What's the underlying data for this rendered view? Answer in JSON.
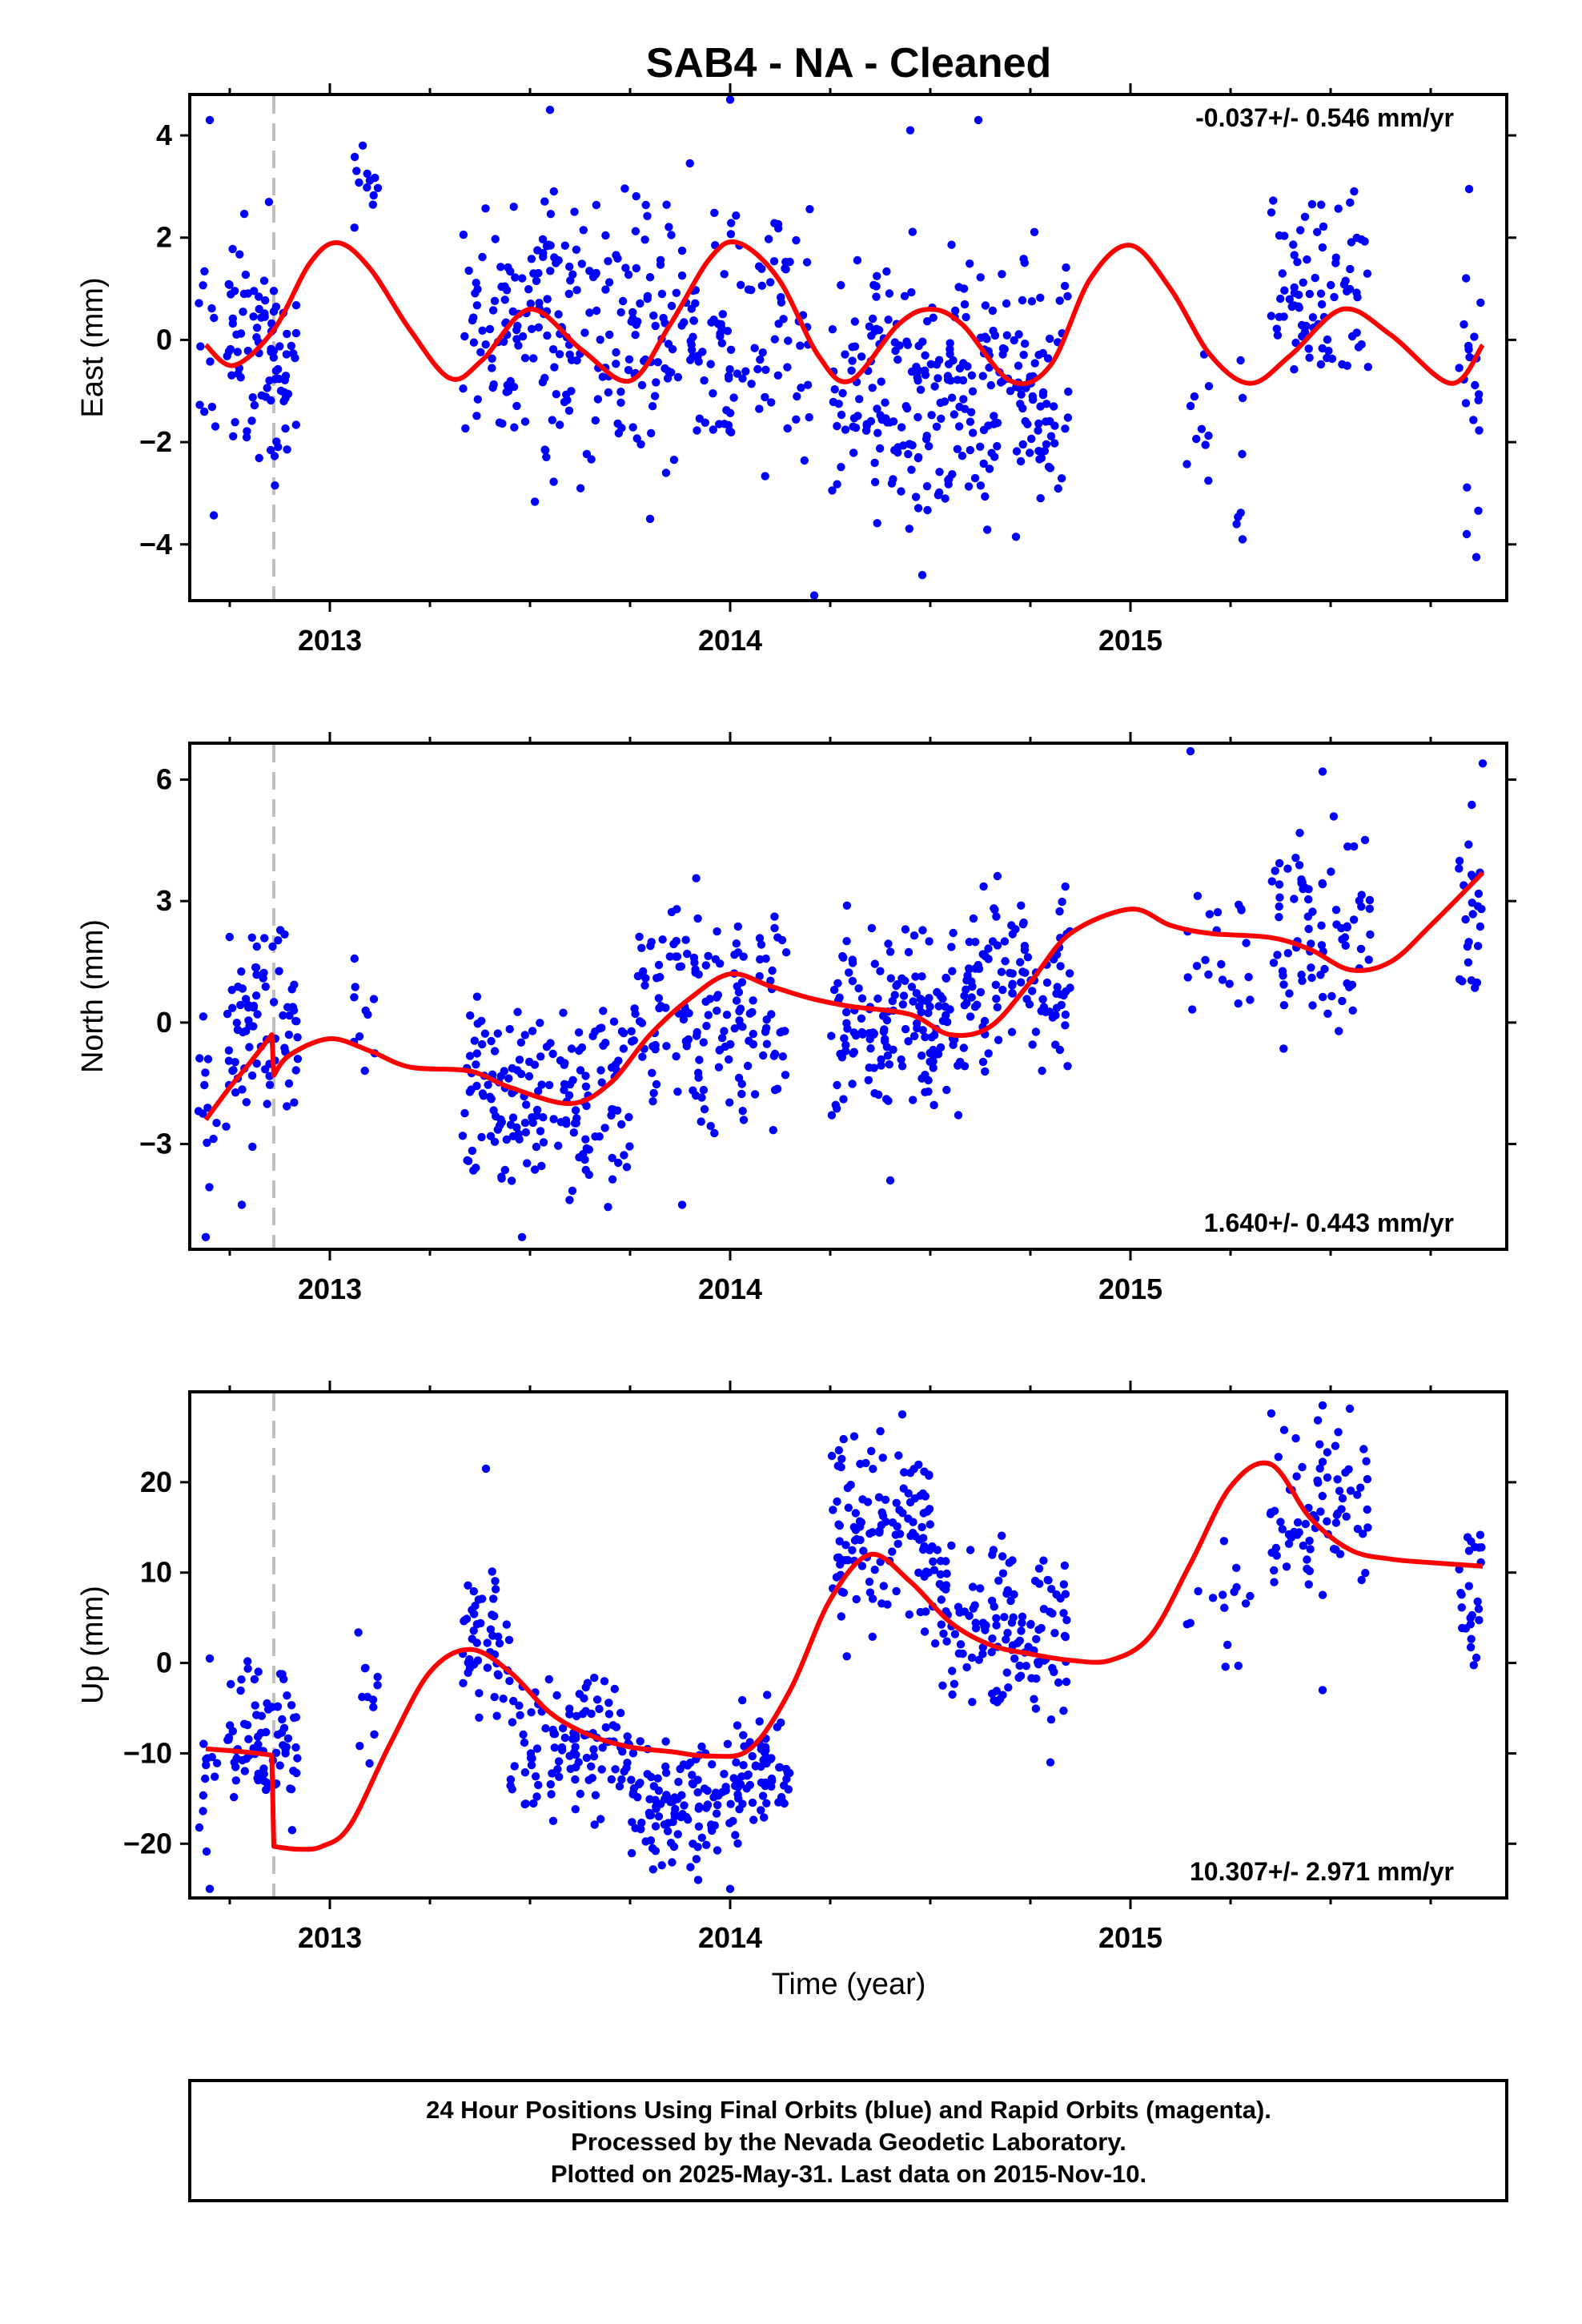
{
  "title": "SAB4  - NA - Cleaned",
  "x_axis_label": "Time (year)",
  "footer": {
    "line1": "24 Hour Positions Using Final Orbits (blue) and Rapid Orbits (magenta).",
    "line2": "Processed by the Nevada Geodetic Laboratory.",
    "line3": "Plotted on 2025-May-31. Last data on 2015-Nov-10."
  },
  "colors": {
    "points": "#0000ff",
    "model": "#ff0000",
    "marker": "#c0c0c0"
  },
  "chart_data": [
    {
      "type": "scatter",
      "name": "east",
      "ylabel": "East (mm)",
      "rate_text": "-0.037+/- 0.546 mm/yr",
      "rate_position": "top-right",
      "xlim": [
        2012.65,
        2015.94
      ],
      "ylim": [
        -5.1,
        4.8
      ],
      "yticks": [
        -4,
        -2,
        0,
        2,
        4
      ],
      "ytick_labels": [
        "−4",
        "−2",
        "0",
        "2",
        "4"
      ],
      "xticks": [
        2013,
        2014,
        2015
      ],
      "xtick_labels": [
        "2013",
        "2014",
        "2015"
      ],
      "equipment_change": 2012.86,
      "model_line": {
        "x": [
          2012.69,
          2012.76,
          2012.86,
          2012.95,
          2013.02,
          2013.1,
          2013.2,
          2013.3,
          2013.38,
          2013.5,
          2013.63,
          2013.75,
          2013.85,
          2013.95,
          2014.02,
          2014.12,
          2014.22,
          2014.3,
          2014.42,
          2014.5,
          2014.58,
          2014.7,
          2014.8,
          2014.9,
          2015.0,
          2015.1,
          2015.2,
          2015.3,
          2015.4,
          2015.53,
          2015.65,
          2015.8,
          2015.88
        ],
        "y": [
          -0.1,
          -0.5,
          0.2,
          1.5,
          1.9,
          1.4,
          0.2,
          -0.75,
          -0.4,
          0.6,
          -0.2,
          -0.8,
          0.3,
          1.6,
          1.9,
          1.2,
          -0.3,
          -0.8,
          0.3,
          0.6,
          0.3,
          -0.8,
          -0.5,
          1.2,
          1.85,
          1.0,
          -0.3,
          -0.85,
          -0.3,
          0.6,
          0.1,
          -0.85,
          -0.1
        ]
      },
      "segments": [
        {
          "x": [
            2012.67,
            2012.72
          ],
          "mean": -0.6,
          "spread": 1.8,
          "n": 12
        },
        {
          "x": [
            2012.74,
            2012.86
          ],
          "mean": 0.0,
          "spread": 1.2,
          "n": 60
        },
        {
          "x": [
            2012.86,
            2012.92
          ],
          "mean": -0.8,
          "spread": 1.0,
          "n": 30
        },
        {
          "x": [
            2013.06,
            2013.12
          ],
          "mean": 3.0,
          "spread": 0.4,
          "n": 12
        },
        {
          "x": [
            2013.33,
            2014.2
          ],
          "mean": 0.3,
          "spread": 1.3,
          "n": 330
        },
        {
          "x": [
            2014.25,
            2014.85
          ],
          "mean": -0.9,
          "spread": 1.2,
          "n": 280
        },
        {
          "x": [
            2015.14,
            2015.2
          ],
          "mean": -1.4,
          "spread": 1.2,
          "n": 10
        },
        {
          "x": [
            2015.26,
            2015.3
          ],
          "mean": -2.0,
          "spread": 1.2,
          "n": 6
        },
        {
          "x": [
            2015.35,
            2015.6
          ],
          "mean": 0.8,
          "spread": 0.9,
          "n": 80
        },
        {
          "x": [
            2015.82,
            2015.88
          ],
          "mean": -0.7,
          "spread": 1.4,
          "n": 20
        }
      ],
      "outliers": [
        [
          2012.7,
          4.3
        ],
        [
          2013.55,
          4.5
        ],
        [
          2014.0,
          4.7
        ],
        [
          2014.45,
          4.1
        ],
        [
          2014.62,
          4.3
        ],
        [
          2014.21,
          -5.0
        ],
        [
          2014.48,
          -4.6
        ],
        [
          2013.8,
          -3.5
        ],
        [
          2015.28,
          -3.9
        ],
        [
          2015.84,
          -3.8
        ]
      ]
    },
    {
      "type": "scatter",
      "name": "north",
      "ylabel": "North (mm)",
      "rate_text": "1.640+/- 0.443 mm/yr",
      "rate_position": "bottom-right",
      "xlim": [
        2012.65,
        2015.94
      ],
      "ylim": [
        -5.6,
        6.9
      ],
      "yticks": [
        -3,
        0,
        3,
        6
      ],
      "ytick_labels": [
        "−3",
        "0",
        "3",
        "6"
      ],
      "xticks": [
        2013,
        2014,
        2015
      ],
      "xtick_labels": [
        "2013",
        "2014",
        "2015"
      ],
      "equipment_change": 2012.86,
      "model_line": {
        "x": [
          2012.69,
          2012.75,
          2012.8,
          2012.855,
          2012.86,
          2012.9,
          2013.0,
          2013.1,
          2013.2,
          2013.35,
          2013.45,
          2013.6,
          2013.7,
          2013.8,
          2013.9,
          2014.0,
          2014.1,
          2014.2,
          2014.3,
          2014.45,
          2014.55,
          2014.65,
          2014.75,
          2014.85,
          2015.0,
          2015.1,
          2015.2,
          2015.35,
          2015.45,
          2015.55,
          2015.65,
          2015.75,
          2015.88
        ],
        "y": [
          -2.4,
          -1.6,
          -1.0,
          -0.3,
          -1.3,
          -0.8,
          -0.4,
          -0.7,
          -1.1,
          -1.2,
          -1.6,
          -2.0,
          -1.5,
          -0.3,
          0.6,
          1.2,
          0.9,
          0.6,
          0.4,
          0.2,
          -0.3,
          -0.1,
          1.0,
          2.2,
          2.8,
          2.4,
          2.2,
          2.1,
          1.8,
          1.3,
          1.5,
          2.4,
          3.7
        ]
      },
      "segments": [
        {
          "x": [
            2012.67,
            2012.72
          ],
          "mean": -2.3,
          "spread": 1.3,
          "n": 12
        },
        {
          "x": [
            2012.74,
            2012.92
          ],
          "mean": -0.2,
          "spread": 1.3,
          "n": 80
        },
        {
          "x": [
            2013.06,
            2013.12
          ],
          "mean": -0.5,
          "spread": 1.3,
          "n": 10
        },
        {
          "x": [
            2013.33,
            2013.75
          ],
          "mean": -1.9,
          "spread": 1.2,
          "n": 170
        },
        {
          "x": [
            2013.75,
            2014.15
          ],
          "mean": 0.2,
          "spread": 1.3,
          "n": 160
        },
        {
          "x": [
            2014.25,
            2014.6
          ],
          "mean": 0.0,
          "spread": 1.1,
          "n": 160
        },
        {
          "x": [
            2014.6,
            2014.85
          ],
          "mean": 1.0,
          "spread": 1.1,
          "n": 100
        },
        {
          "x": [
            2015.14,
            2015.3
          ],
          "mean": 2.2,
          "spread": 1.3,
          "n": 20
        },
        {
          "x": [
            2015.35,
            2015.6
          ],
          "mean": 2.3,
          "spread": 1.1,
          "n": 80
        },
        {
          "x": [
            2015.82,
            2015.88
          ],
          "mean": 3.0,
          "spread": 1.2,
          "n": 25
        }
      ],
      "outliers": [
        [
          2015.15,
          6.7
        ],
        [
          2015.48,
          6.2
        ],
        [
          2015.88,
          6.4
        ],
        [
          2012.69,
          -5.3
        ],
        [
          2013.48,
          -5.3
        ],
        [
          2013.88,
          -4.5
        ],
        [
          2014.4,
          -3.9
        ],
        [
          2012.78,
          -4.5
        ]
      ]
    },
    {
      "type": "scatter",
      "name": "up",
      "ylabel": "Up (mm)",
      "rate_text": "10.307+/- 2.971 mm/yr",
      "rate_position": "bottom-right",
      "xlim": [
        2012.65,
        2015.94
      ],
      "ylim": [
        -26,
        30
      ],
      "yticks": [
        -20,
        -10,
        0,
        10,
        20
      ],
      "ytick_labels": [
        "−20",
        "−10",
        "0",
        "10",
        "20"
      ],
      "xticks": [
        2013,
        2014,
        2015
      ],
      "xtick_labels": [
        "2013",
        "2014",
        "2015"
      ],
      "equipment_change": 2012.86,
      "model_line": {
        "x": [
          2012.69,
          2012.75,
          2012.8,
          2012.855,
          2012.86,
          2012.92,
          2012.98,
          2013.05,
          2013.15,
          2013.25,
          2013.35,
          2013.45,
          2013.55,
          2013.65,
          2013.75,
          2013.85,
          2013.95,
          2014.05,
          2014.15,
          2014.25,
          2014.35,
          2014.45,
          2014.55,
          2014.65,
          2014.75,
          2014.85,
          2014.95,
          2015.05,
          2015.15,
          2015.25,
          2015.35,
          2015.45,
          2015.55,
          2015.65,
          2015.75,
          2015.88
        ],
        "y": [
          -9.5,
          -9.7,
          -9.9,
          -10.2,
          -20.3,
          -20.6,
          -20.3,
          -18,
          -9,
          -1,
          1.5,
          -1,
          -5.5,
          -8,
          -9.3,
          -9.8,
          -10.3,
          -9.5,
          -3,
          7,
          12,
          9,
          4.5,
          2,
          1,
          0.3,
          0.3,
          3,
          11,
          19.5,
          22,
          16,
          12.5,
          11.5,
          11.1,
          10.7
        ]
      },
      "segments": [
        {
          "x": [
            2012.67,
            2012.72
          ],
          "mean": -14.0,
          "spread": 6.0,
          "n": 12
        },
        {
          "x": [
            2012.74,
            2012.92
          ],
          "mean": -9.0,
          "spread": 4.0,
          "n": 80
        },
        {
          "x": [
            2013.06,
            2013.12
          ],
          "mean": -4.5,
          "spread": 3.5,
          "n": 12
        },
        {
          "x": [
            2013.33,
            2013.45
          ],
          "mean": 2.0,
          "spread": 4.0,
          "n": 50
        },
        {
          "x": [
            2013.45,
            2013.75
          ],
          "mean": -9.0,
          "spread": 3.5,
          "n": 110
        },
        {
          "x": [
            2013.75,
            2014.0
          ],
          "mean": -15.5,
          "spread": 3.5,
          "n": 110
        },
        {
          "x": [
            2014.0,
            2014.15
          ],
          "mean": -11.5,
          "spread": 3.5,
          "n": 70
        },
        {
          "x": [
            2014.25,
            2014.5
          ],
          "mean": 14.0,
          "spread": 5.0,
          "n": 120
        },
        {
          "x": [
            2014.5,
            2014.85
          ],
          "mean": 4.5,
          "spread": 4.5,
          "n": 140
        },
        {
          "x": [
            2015.14,
            2015.3
          ],
          "mean": 9.0,
          "spread": 5.0,
          "n": 15
        },
        {
          "x": [
            2015.35,
            2015.6
          ],
          "mean": 16.5,
          "spread": 5.0,
          "n": 80
        },
        {
          "x": [
            2015.82,
            2015.88
          ],
          "mean": 7.0,
          "spread": 5.0,
          "n": 25
        }
      ],
      "outliers": [
        [
          2012.7,
          -25
        ],
        [
          2013.92,
          -24
        ],
        [
          2014.0,
          -25
        ],
        [
          2013.39,
          21.5
        ],
        [
          2014.43,
          27.5
        ],
        [
          2015.48,
          28.5
        ],
        [
          2014.8,
          -11
        ],
        [
          2015.48,
          -3
        ],
        [
          2012.7,
          0.5
        ]
      ]
    }
  ]
}
